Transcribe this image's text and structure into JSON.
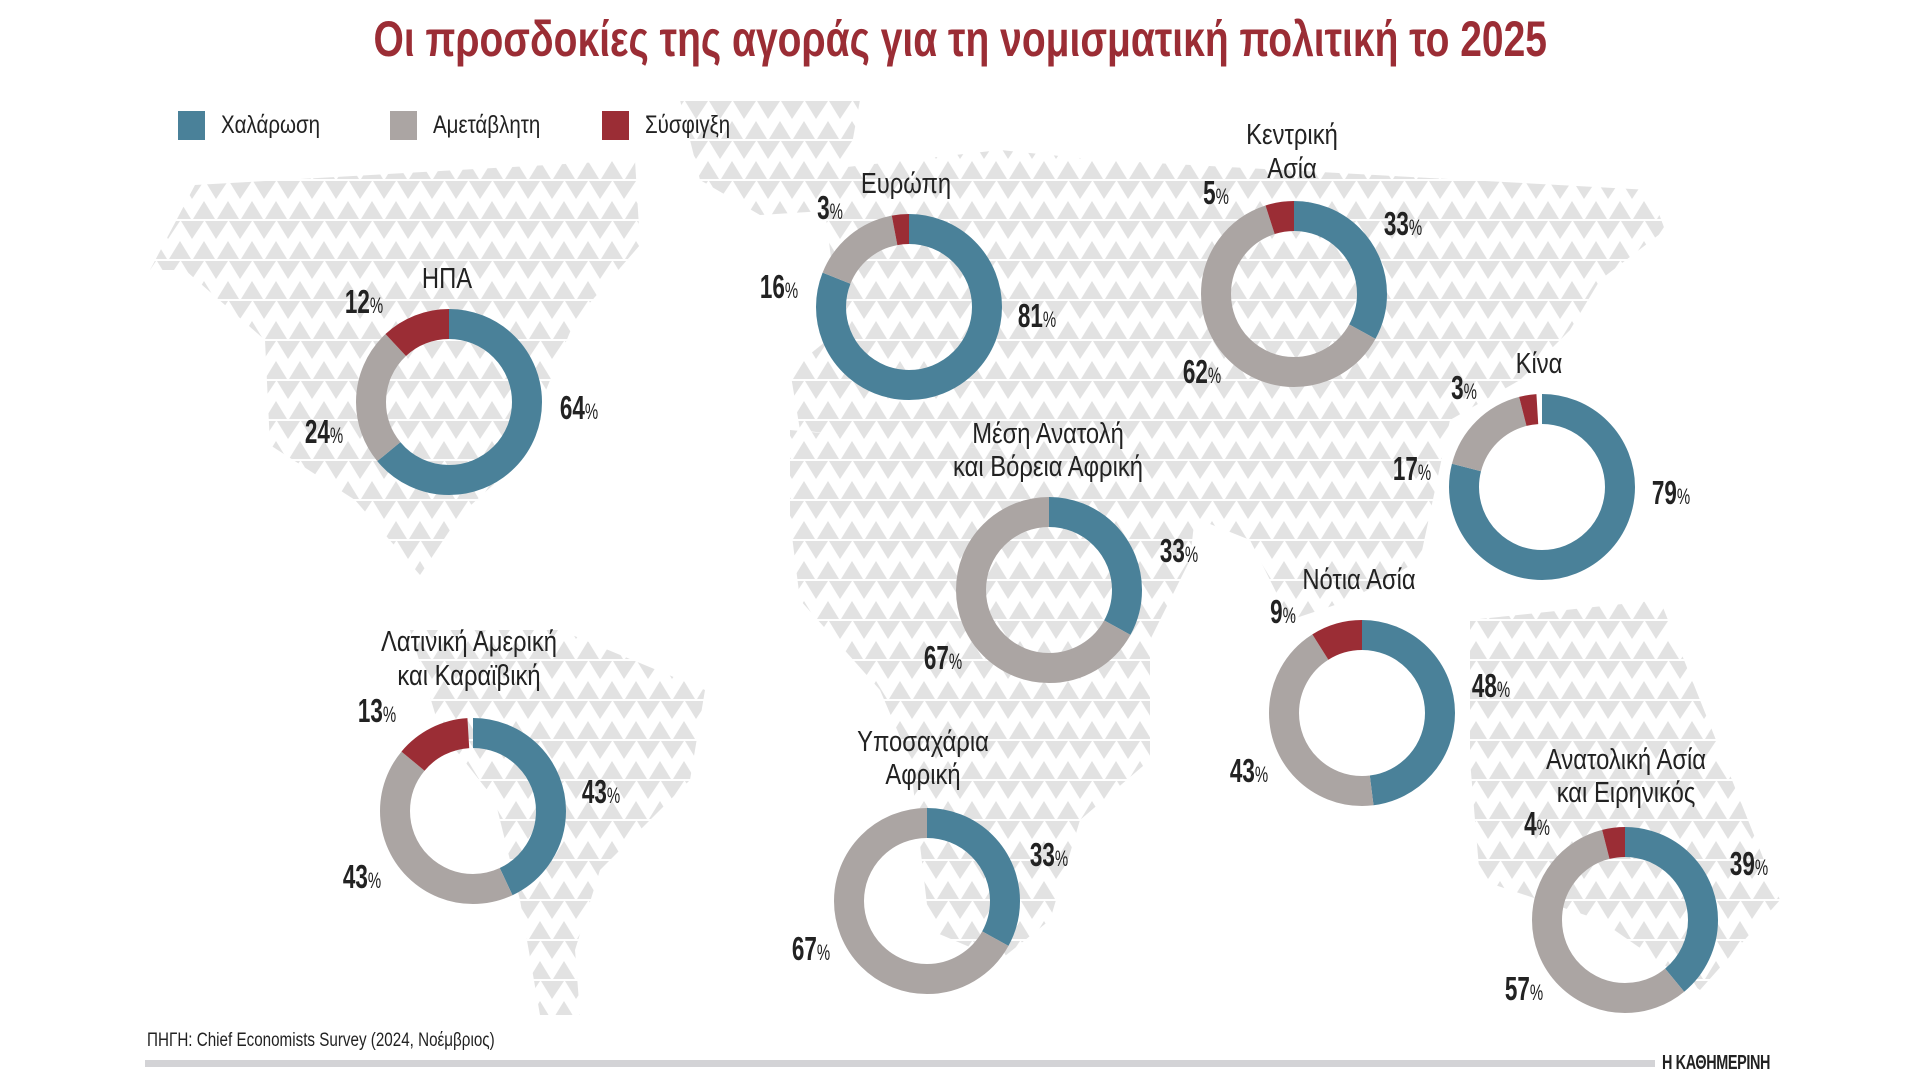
{
  "chart_data": {
    "type": "pie",
    "title": "Οι προσδοκίες της αγοράς για τη νομισματική πολιτική το 2025",
    "legend": [
      {
        "key": "easing",
        "label": "Χαλάρωση",
        "color": "#4a8199"
      },
      {
        "key": "unchanged",
        "label": "Αμετάβλητη",
        "color": "#aba5a3"
      },
      {
        "key": "tightening",
        "label": "Σύσφιγξη",
        "color": "#9b2d35"
      }
    ],
    "regions": [
      {
        "id": "usa",
        "name": [
          "ΗΠΑ"
        ],
        "easing": 64,
        "unchanged": 24,
        "tightening": 12
      },
      {
        "id": "europe",
        "name": [
          "Ευρώπη"
        ],
        "easing": 81,
        "unchanged": 16,
        "tightening": 3
      },
      {
        "id": "central-asia",
        "name": [
          "Κεντρική",
          "Ασία"
        ],
        "easing": 33,
        "unchanged": 62,
        "tightening": 5
      },
      {
        "id": "china",
        "name": [
          "Κίνα"
        ],
        "easing": 79,
        "unchanged": 17,
        "tightening": 3
      },
      {
        "id": "mena",
        "name": [
          "Μέση Ανατολή",
          "και Βόρεια Αφρική"
        ],
        "easing": 33,
        "unchanged": 67,
        "tightening": null
      },
      {
        "id": "south-asia",
        "name": [
          "Νότια Ασία"
        ],
        "easing": 48,
        "unchanged": 43,
        "tightening": 9
      },
      {
        "id": "latam",
        "name": [
          "Λατινική Αμερική",
          "και Καραϊβική"
        ],
        "easing": 43,
        "unchanged": 43,
        "tightening": 13
      },
      {
        "id": "ssa",
        "name": [
          "Υποσαχάρια",
          "Αφρική"
        ],
        "easing": 33,
        "unchanged": 67,
        "tightening": null
      },
      {
        "id": "east-asia",
        "name": [
          "Ανατολική Ασία",
          "και Ειρηνικός"
        ],
        "easing": 39,
        "unchanged": 57,
        "tightening": 4
      }
    ]
  },
  "source": "ΠΗΓΗ: Chief Economists Survey (2024, Νοέμβριος)",
  "publisher": "Η ΚΑΘΗΜΕΡΙΝΗ"
}
